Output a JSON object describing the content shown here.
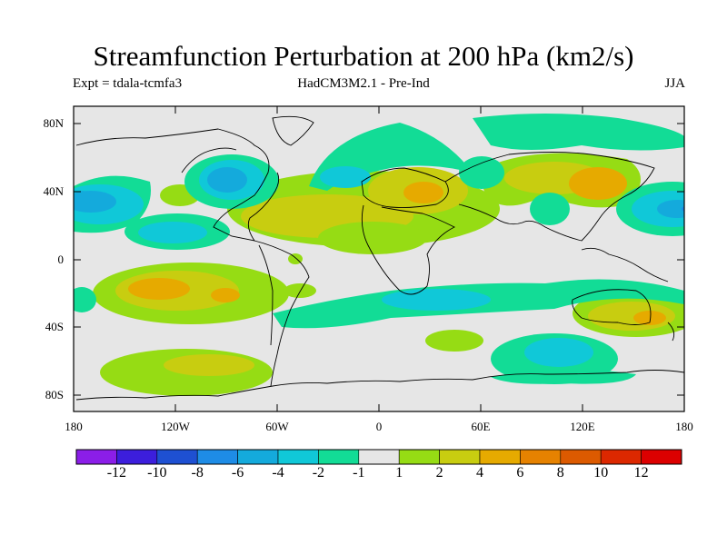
{
  "title": "Streamfunction Perturbation at 200 hPa (km2/s)",
  "subtitle_left": "Expt = tdala-tcmfa3",
  "subtitle_center": "HadCM3M2.1 - Pre-Ind",
  "subtitle_right": "JJA",
  "lat_labels": [
    "80N",
    "40N",
    "0",
    "40S",
    "80S"
  ],
  "lon_labels": [
    "180",
    "120W",
    "60W",
    "0",
    "60E",
    "120E",
    "180"
  ],
  "colorbar": {
    "labels": [
      "-12",
      "-10",
      "-8",
      "-6",
      "-4",
      "-2",
      "-1",
      "1",
      "2",
      "4",
      "6",
      "8",
      "10",
      "12"
    ],
    "colors": [
      "#8b1ee8",
      "#3c1edc",
      "#1e50d2",
      "#1e8ce6",
      "#14aadc",
      "#10c8d8",
      "#12dc96",
      "#e6e6e6",
      "#96dc14",
      "#c8cd10",
      "#e6aa00",
      "#e68200",
      "#dc5a00",
      "#dc2800",
      "#dc0000"
    ]
  },
  "palette": {
    "background": "#e6e6e6",
    "cyan": "#10c8d8",
    "teal_green": "#12dc96",
    "light_blue": "#14aadc",
    "blue": "#1e8ce6",
    "yellow_green": "#96dc14",
    "olive": "#c8cd10",
    "orange": "#e6aa00",
    "dark_orange": "#e68200"
  }
}
